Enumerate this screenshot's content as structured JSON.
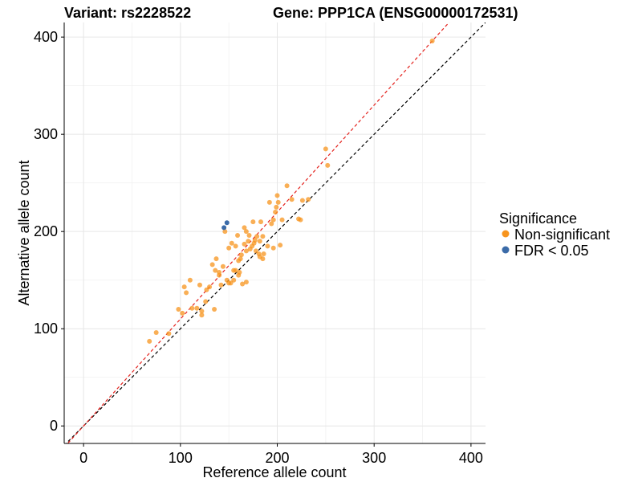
{
  "chart_data": {
    "type": "scatter",
    "title_left": "Variant: rs2228522",
    "title_right": "Gene: PPP1CA (ENSG00000172531)",
    "xlabel": "Reference allele count",
    "ylabel": "Alternative allele count",
    "xlim": [
      -20,
      415
    ],
    "ylim": [
      -18,
      415
    ],
    "x_ticks": [
      0,
      100,
      200,
      300,
      400
    ],
    "y_ticks": [
      0,
      100,
      200,
      300,
      400
    ],
    "grid": true,
    "legend": {
      "title": "Significance",
      "position": "right",
      "entries": [
        {
          "label": "Non-significant",
          "color": "#F7941D"
        },
        {
          "label": "FDR < 0.05",
          "color": "#3B6BA8"
        }
      ]
    },
    "reference_lines": [
      {
        "name": "identity",
        "slope": 1.0,
        "intercept": 0,
        "color": "#000000",
        "style": "dashed"
      },
      {
        "name": "fit",
        "slope": 1.1,
        "intercept": 0,
        "color": "#E4211C",
        "style": "dashed"
      }
    ],
    "series": [
      {
        "group": "Non-significant",
        "color": "#F7941D",
        "points": [
          [
            68,
            87
          ],
          [
            75,
            96
          ],
          [
            88,
            95
          ],
          [
            98,
            120
          ],
          [
            102,
            116
          ],
          [
            104,
            143
          ],
          [
            106,
            137
          ],
          [
            110,
            150
          ],
          [
            112,
            121
          ],
          [
            117,
            121
          ],
          [
            120,
            145
          ],
          [
            122,
            118
          ],
          [
            122,
            114
          ],
          [
            127,
            140
          ],
          [
            130,
            143
          ],
          [
            133,
            166
          ],
          [
            135,
            120
          ],
          [
            136,
            160
          ],
          [
            137,
            172
          ],
          [
            140,
            158
          ],
          [
            142,
            145
          ],
          [
            144,
            164
          ],
          [
            146,
            200
          ],
          [
            148,
            150
          ],
          [
            150,
            183
          ],
          [
            150,
            147
          ],
          [
            153,
            188
          ],
          [
            155,
            150
          ],
          [
            155,
            160
          ],
          [
            157,
            185
          ],
          [
            159,
            196
          ],
          [
            160,
            155
          ],
          [
            162,
            172
          ],
          [
            163,
            176
          ],
          [
            164,
            146
          ],
          [
            166,
            204
          ],
          [
            166,
            187
          ],
          [
            168,
            180
          ],
          [
            170,
            190
          ],
          [
            171,
            196
          ],
          [
            172,
            182
          ],
          [
            174,
            185
          ],
          [
            175,
            210
          ],
          [
            176,
            188
          ],
          [
            177,
            191
          ],
          [
            179,
            195
          ],
          [
            181,
            177
          ],
          [
            182,
            174
          ],
          [
            183,
            210
          ],
          [
            185,
            172
          ],
          [
            186,
            177
          ],
          [
            190,
            185
          ],
          [
            192,
            230
          ],
          [
            194,
            208
          ],
          [
            196,
            183
          ],
          [
            198,
            220
          ],
          [
            199,
            225
          ],
          [
            200,
            237
          ],
          [
            201,
            230
          ],
          [
            203,
            186
          ],
          [
            205,
            212
          ],
          [
            210,
            247
          ],
          [
            215,
            233
          ],
          [
            222,
            213
          ],
          [
            224,
            212
          ],
          [
            226,
            232
          ],
          [
            232,
            233
          ],
          [
            250,
            285
          ],
          [
            252,
            268
          ],
          [
            157,
            160
          ],
          [
            161,
            158
          ],
          [
            152,
            147
          ],
          [
            168,
            148
          ],
          [
            178,
            180
          ],
          [
            196,
            212
          ],
          [
            140,
            155
          ],
          [
            182,
            190
          ],
          [
            126,
            128
          ],
          [
            160,
            170
          ],
          [
            185,
            195
          ],
          [
            168,
            200
          ],
          [
            360,
            396
          ]
        ]
      },
      {
        "group": "FDR < 0.05",
        "color": "#3B6BA8",
        "points": [
          [
            145,
            204
          ],
          [
            148,
            209
          ]
        ]
      }
    ]
  }
}
